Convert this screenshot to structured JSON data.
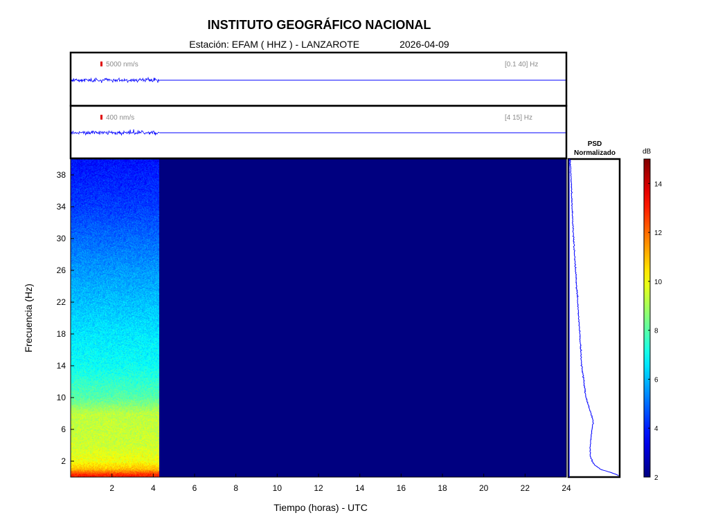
{
  "header": {
    "title": "INSTITUTO GEOGRÁFICO NACIONAL",
    "station": "Estación:  EFAM ( HHZ ) - LANZAROTE",
    "date": "2026-04-09"
  },
  "traces": [
    {
      "scale": "5000 nm/s",
      "band": "[0.1 40] Hz",
      "color": "#0000ff",
      "marker_color": "#e00000",
      "data_until_hours": 4.3
    },
    {
      "scale": "400 nm/s",
      "band": "[4 15] Hz",
      "color": "#0000ff",
      "marker_color": "#e00000",
      "data_until_hours": 4.3
    }
  ],
  "chart_data": {
    "type": "heatmap",
    "xlabel": "Tiempo (horas) - UTC",
    "ylabel": "Frecuencia  (Hz)",
    "xlim": [
      0,
      24
    ],
    "ylim": [
      0,
      40
    ],
    "x_ticks": [
      2,
      4,
      6,
      8,
      10,
      12,
      14,
      16,
      18,
      20,
      22,
      24
    ],
    "y_ticks": [
      2,
      6,
      10,
      14,
      18,
      22,
      26,
      30,
      34,
      38
    ],
    "data_until_hours": 4.3,
    "background_level_db": 2,
    "level_profile": [
      {
        "freq_hz": 0.3,
        "db": 13
      },
      {
        "freq_hz": 1,
        "db": 11
      },
      {
        "freq_hz": 2,
        "db": 10
      },
      {
        "freq_hz": 4,
        "db": 9.5
      },
      {
        "freq_hz": 6,
        "db": 9.4
      },
      {
        "freq_hz": 8,
        "db": 9.3
      },
      {
        "freq_hz": 10,
        "db": 8.0
      },
      {
        "freq_hz": 14,
        "db": 7.0
      },
      {
        "freq_hz": 18,
        "db": 6.6
      },
      {
        "freq_hz": 22,
        "db": 6.1
      },
      {
        "freq_hz": 26,
        "db": 5.6
      },
      {
        "freq_hz": 30,
        "db": 5.0
      },
      {
        "freq_hz": 34,
        "db": 4.4
      },
      {
        "freq_hz": 38,
        "db": 4.0
      },
      {
        "freq_hz": 40,
        "db": 3.8
      }
    ],
    "psd": {
      "title_line1": "PSD",
      "title_line2": "Normalizado",
      "xlim": [
        0,
        1
      ],
      "color": "#0000ff",
      "points": [
        {
          "freq_hz": 0.2,
          "value": 0.98
        },
        {
          "freq_hz": 0.6,
          "value": 0.82
        },
        {
          "freq_hz": 1.0,
          "value": 0.62
        },
        {
          "freq_hz": 1.6,
          "value": 0.5
        },
        {
          "freq_hz": 2.5,
          "value": 0.43
        },
        {
          "freq_hz": 3.5,
          "value": 0.42
        },
        {
          "freq_hz": 5.0,
          "value": 0.44
        },
        {
          "freq_hz": 6.0,
          "value": 0.46
        },
        {
          "freq_hz": 7.0,
          "value": 0.48
        },
        {
          "freq_hz": 8.0,
          "value": 0.44
        },
        {
          "freq_hz": 9.0,
          "value": 0.39
        },
        {
          "freq_hz": 10.0,
          "value": 0.34
        },
        {
          "freq_hz": 12.0,
          "value": 0.3
        },
        {
          "freq_hz": 14.0,
          "value": 0.26
        },
        {
          "freq_hz": 18.0,
          "value": 0.22
        },
        {
          "freq_hz": 22.0,
          "value": 0.18
        },
        {
          "freq_hz": 26.0,
          "value": 0.14
        },
        {
          "freq_hz": 30.0,
          "value": 0.1
        },
        {
          "freq_hz": 34.0,
          "value": 0.07
        },
        {
          "freq_hz": 38.0,
          "value": 0.05
        },
        {
          "freq_hz": 40.0,
          "value": 0.03
        }
      ]
    },
    "colorbar": {
      "label": "dB",
      "range": [
        2,
        15
      ],
      "ticks": [
        2,
        4,
        6,
        8,
        10,
        12,
        14
      ],
      "colormap": "jet"
    }
  }
}
